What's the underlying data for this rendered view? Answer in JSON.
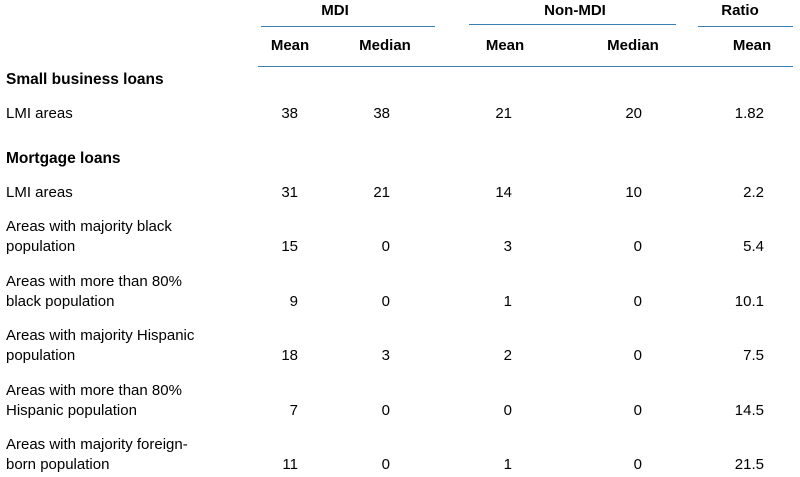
{
  "column_groups": [
    {
      "label": "MDI",
      "sub": [
        "Mean",
        "Median"
      ]
    },
    {
      "label": "Non-MDI",
      "sub": [
        "Mean",
        "Median"
      ]
    },
    {
      "label": "Ratio",
      "sub": [
        "Mean"
      ]
    }
  ],
  "sections": [
    {
      "title": "Small business loans",
      "rows": [
        {
          "label_lines": [
            "LMI areas"
          ],
          "values": [
            "38",
            "38",
            "21",
            "20",
            "1.82"
          ]
        }
      ]
    },
    {
      "title": "Mortgage loans",
      "rows": [
        {
          "label_lines": [
            "LMI areas"
          ],
          "values": [
            "31",
            "21",
            "14",
            "10",
            "2.2"
          ]
        },
        {
          "label_lines": [
            "Areas with majority black",
            "population"
          ],
          "values": [
            "15",
            "0",
            "3",
            "0",
            "5.4"
          ]
        },
        {
          "label_lines": [
            "Areas with more than 80%",
            "black population"
          ],
          "values": [
            "9",
            "0",
            "1",
            "0",
            "10.1"
          ]
        },
        {
          "label_lines": [
            "Areas with majority Hispanic",
            "population"
          ],
          "values": [
            "18",
            "3",
            "2",
            "0",
            "7.5"
          ]
        },
        {
          "label_lines": [
            "Areas with more than 80%",
            "Hispanic population"
          ],
          "values": [
            "7",
            "0",
            "0",
            "0",
            "14.5"
          ]
        },
        {
          "label_lines": [
            "Areas with majority foreign-",
            "born population"
          ],
          "values": [
            "11",
            "0",
            "1",
            "0",
            "21.5"
          ]
        }
      ]
    }
  ],
  "colors": {
    "rule": "#3a7fb0",
    "text": "#000000",
    "background": "#ffffff"
  }
}
